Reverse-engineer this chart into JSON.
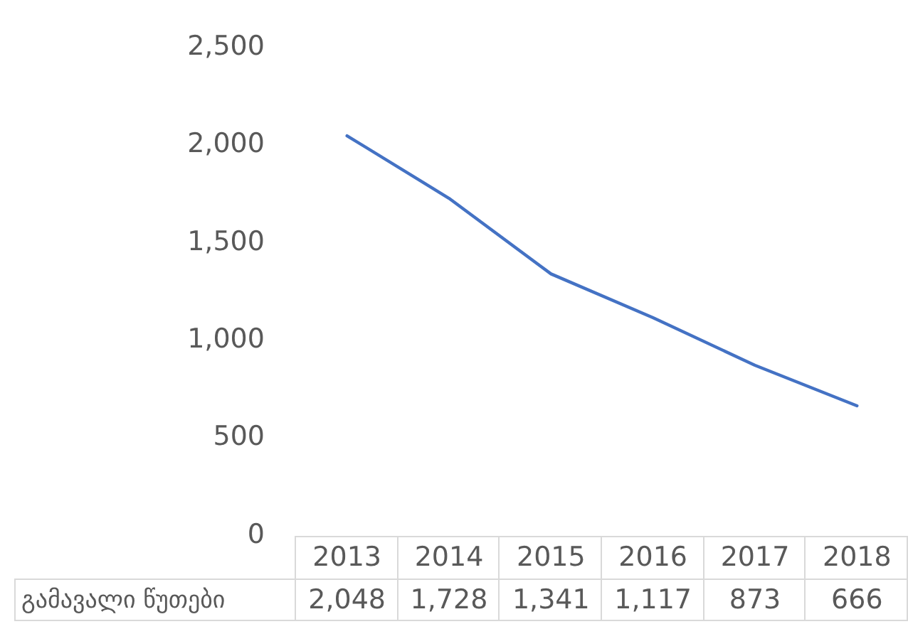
{
  "chart_data": {
    "type": "line",
    "categories": [
      "2013",
      "2014",
      "2015",
      "2016",
      "2017",
      "2018"
    ],
    "series": [
      {
        "name": "გამავალი წუთები",
        "color": "#4472c4",
        "values": [
          2048,
          1728,
          1341,
          1117,
          873,
          666
        ],
        "value_labels": [
          "2,048",
          "1,728",
          "1,341",
          "1,117",
          "873",
          "666"
        ]
      }
    ],
    "ylim": [
      0,
      2500
    ],
    "yticks": [
      0,
      500,
      {
        "value": 1000,
        "label": "1,000"
      },
      {
        "value": 1500,
        "label": "1,500"
      },
      {
        "value": 2000,
        "label": "2,000"
      },
      {
        "value": 2500,
        "label": "2,500"
      }
    ],
    "marker": "none",
    "line_style": "solid"
  }
}
